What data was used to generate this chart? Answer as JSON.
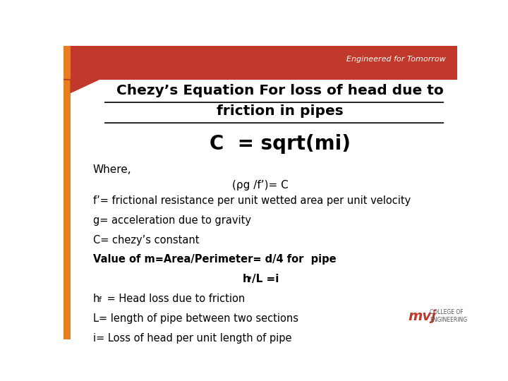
{
  "title_line1": "Chezy’s Equation For loss of head due to",
  "title_line2": "friction in pipes",
  "formula": "C  = sqrt(mi)",
  "where_label": "Where,",
  "rho_line": "(ρg /f’)= C",
  "line1": "f’= frictional resistance per unit wetted area per unit velocity",
  "line2": "g= acceleration due to gravity",
  "line3": "C= chezy’s constant",
  "line4_bold": "Value of m=Area/Perimeter= d/4 for  pipe",
  "line7": "L= length of pipe between two sections",
  "line8": "i= Loss of head per unit length of pipe",
  "header_text": "Engineered for Tomorrow",
  "bg_color": "#ffffff",
  "header_bg": "#c0392b",
  "left_bar_color": "#e67e22",
  "left_bar_dark": "#c0392b",
  "title_color": "#000000",
  "text_color": "#000000",
  "header_text_color": "#ffffff"
}
